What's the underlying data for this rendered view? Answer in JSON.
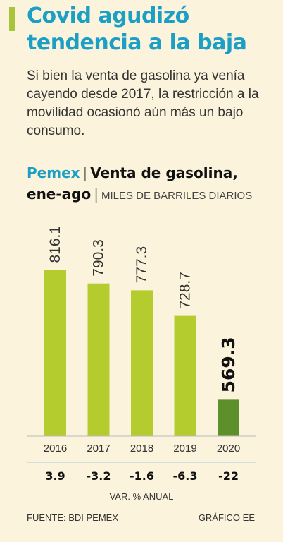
{
  "header": {
    "title": "Covid agudizó tendencia a la baja",
    "intro": "Si bien la venta de gasolina ya venía cayendo desde 2017, la restricción a la movilidad ocasionó aún más un bajo consumo."
  },
  "chart_header": {
    "brand": "Pemex",
    "title_part1": "Venta de gasolina,",
    "title_part2": "ene-ago",
    "units": "MILES DE BARRILES DIARIOS"
  },
  "chart_data": {
    "type": "bar",
    "categories": [
      "2016",
      "2017",
      "2018",
      "2019",
      "2020"
    ],
    "values": [
      816.1,
      790.3,
      777.3,
      728.7,
      569.3
    ],
    "value_labels": [
      "816.1",
      "790.3",
      "777.3",
      "728.7",
      "569.3"
    ],
    "var_pct": [
      "3.9",
      "-3.2",
      "-1.6",
      "-6.3",
      "-22"
    ],
    "var_label": "VAR. % ANUAL",
    "ylim": [
      500,
      900
    ],
    "grid": false,
    "colors": {
      "bar": "#b5cc2e",
      "highlight": "#5d8f2a"
    },
    "highlight_index": 4
  },
  "footer": {
    "source": "FUENTE: BDI PEMEX",
    "credit": "GRÁFICO EE"
  }
}
